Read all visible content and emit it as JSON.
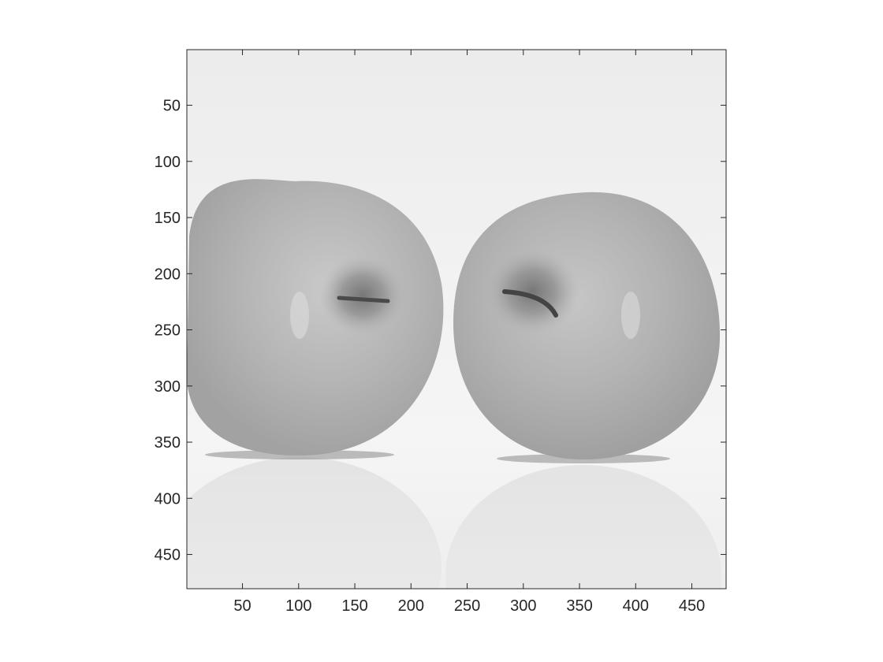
{
  "figure": {
    "image_content": "grayscale-photo-two-apples",
    "background_color": "#ffffff",
    "axes_color": "#262626"
  },
  "axes": {
    "xlim": [
      0.5,
      480.5
    ],
    "ylim": [
      0.5,
      480.5
    ],
    "y_direction": "reverse",
    "x_ticks": [
      50,
      100,
      150,
      200,
      250,
      300,
      350,
      400,
      450
    ],
    "y_ticks": [
      50,
      100,
      150,
      200,
      250,
      300,
      350,
      400,
      450
    ],
    "x_tick_labels": [
      "50",
      "100",
      "150",
      "200",
      "250",
      "300",
      "350",
      "400",
      "450"
    ],
    "y_tick_labels": [
      "50",
      "100",
      "150",
      "200",
      "250",
      "300",
      "350",
      "400",
      "450"
    ]
  }
}
